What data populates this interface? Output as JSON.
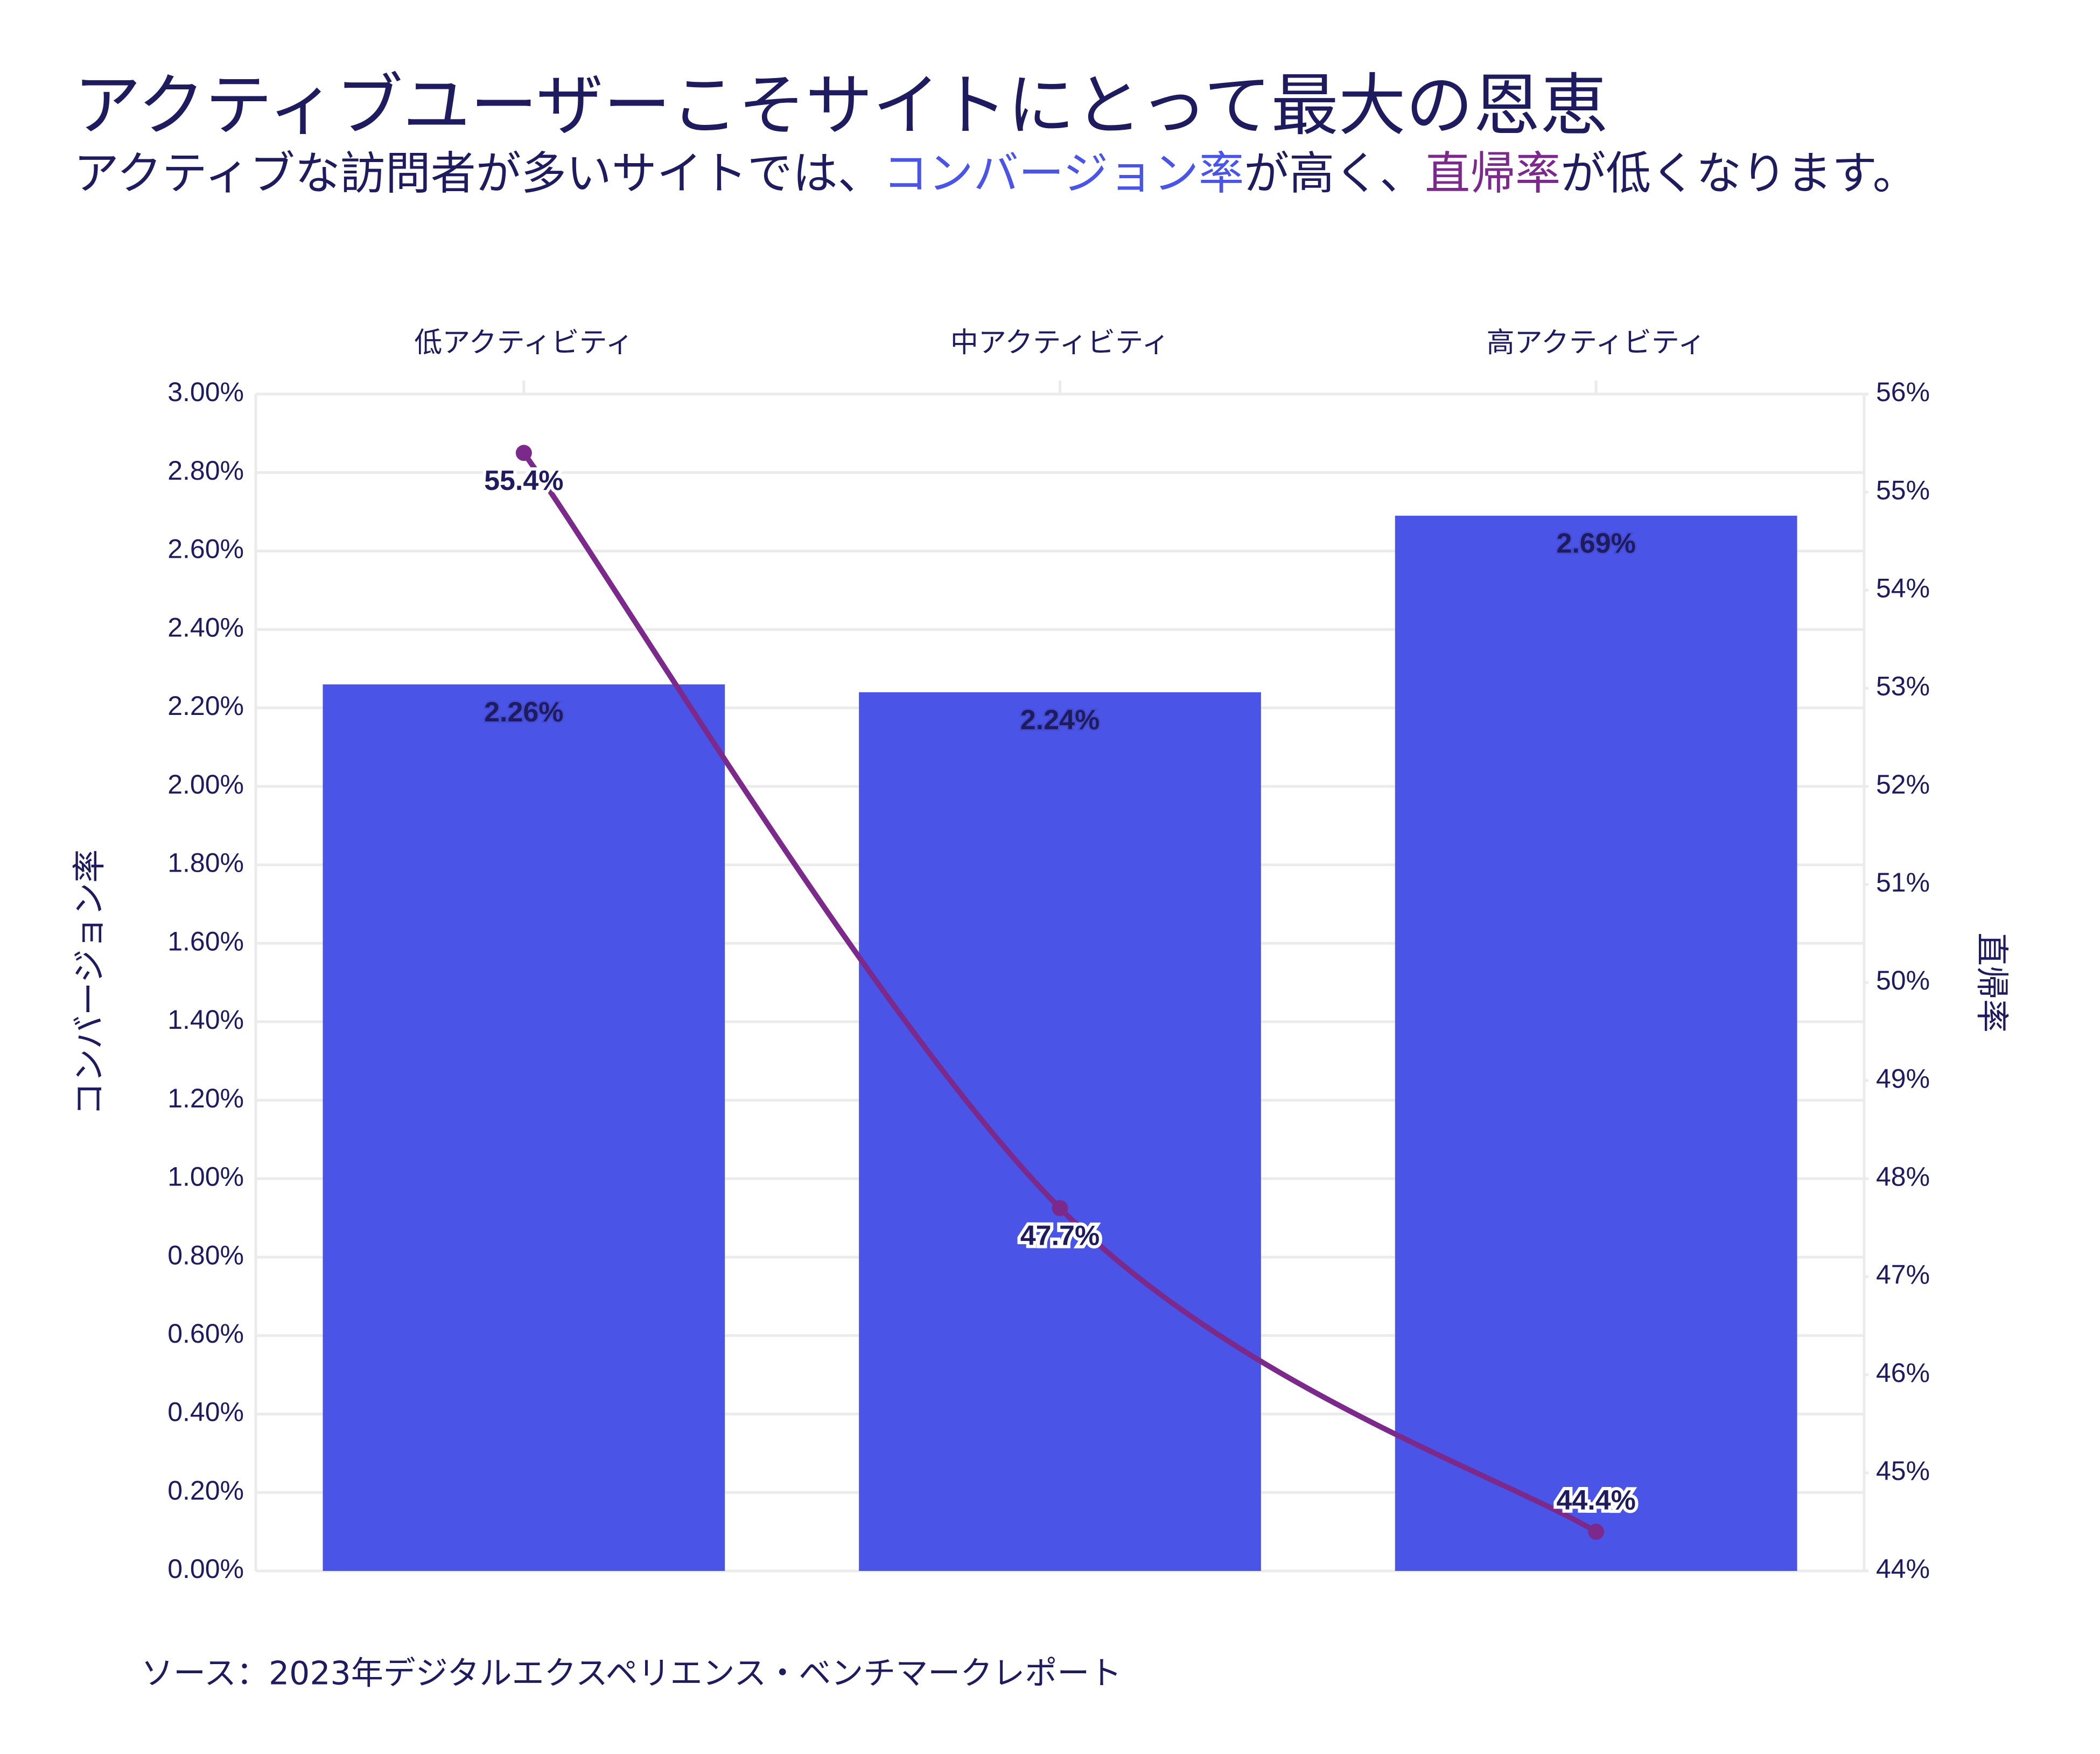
{
  "chart_data": {
    "type": "bar",
    "title": "アクティブユーザーこそサイトにとって最大の恩恵",
    "subtitle": [
      {
        "text": "アクティブな訪問者が多いサイトでは、"
      },
      {
        "text": "コンバージョン率",
        "color": "#4a55e8"
      },
      {
        "text": "が高く、"
      },
      {
        "text": "直帰率",
        "color": "#7b2a8c"
      },
      {
        "text": "が低くなります。"
      }
    ],
    "categories": [
      "低アクティビティ",
      "中アクティビティ",
      "高アクティビティ"
    ],
    "series": [
      {
        "name": "コンバージョン率",
        "type": "bar",
        "color": "#4a55e8",
        "values": [
          2.26,
          2.24,
          2.69
        ],
        "value_labels": [
          "2.26%",
          "2.24%",
          "2.69%"
        ]
      },
      {
        "name": "直帰率",
        "type": "line",
        "axis": "y2",
        "color": "#7b2a8c",
        "values": [
          55.4,
          47.7,
          44.4
        ],
        "value_labels": [
          "55.4%",
          "47.7%",
          "44.4%"
        ]
      }
    ],
    "ylim": [
      0,
      3
    ],
    "yticks": [
      {
        "value": 0,
        "label": "0.00%"
      },
      {
        "value": 0.2,
        "label": "0.20%"
      },
      {
        "value": 0.4,
        "label": "0.40%"
      },
      {
        "value": 0.6,
        "label": "0.60%"
      },
      {
        "value": 0.8,
        "label": "0.80%"
      },
      {
        "value": 1,
        "label": "1.00%"
      },
      {
        "value": 1.2,
        "label": "1.20%"
      },
      {
        "value": 1.4,
        "label": "1.40%"
      },
      {
        "value": 1.6,
        "label": "1.60%"
      },
      {
        "value": 1.8,
        "label": "1.80%"
      },
      {
        "value": 2,
        "label": "2.00%"
      },
      {
        "value": 2.2,
        "label": "2.20%"
      },
      {
        "value": 2.4,
        "label": "2.40%"
      },
      {
        "value": 2.6,
        "label": "2.60%"
      },
      {
        "value": 2.8,
        "label": "2.80%"
      },
      {
        "value": 3,
        "label": "3.00%"
      }
    ],
    "y2lim": [
      44,
      56
    ],
    "y2ticks": [
      {
        "value": 44,
        "label": "44%"
      },
      {
        "value": 45,
        "label": "45%"
      },
      {
        "value": 46,
        "label": "46%"
      },
      {
        "value": 47,
        "label": "47%"
      },
      {
        "value": 48,
        "label": "48%"
      },
      {
        "value": 49,
        "label": "49%"
      },
      {
        "value": 50,
        "label": "50%"
      },
      {
        "value": 51,
        "label": "51%"
      },
      {
        "value": 52,
        "label": "52%"
      },
      {
        "value": 53,
        "label": "53%"
      },
      {
        "value": 54,
        "label": "54%"
      },
      {
        "value": 55,
        "label": "55%"
      },
      {
        "value": 56,
        "label": "56%"
      }
    ],
    "grid": true,
    "source": "ソース：2023年デジタルエクスペリエンス・ベンチマークレポート"
  }
}
